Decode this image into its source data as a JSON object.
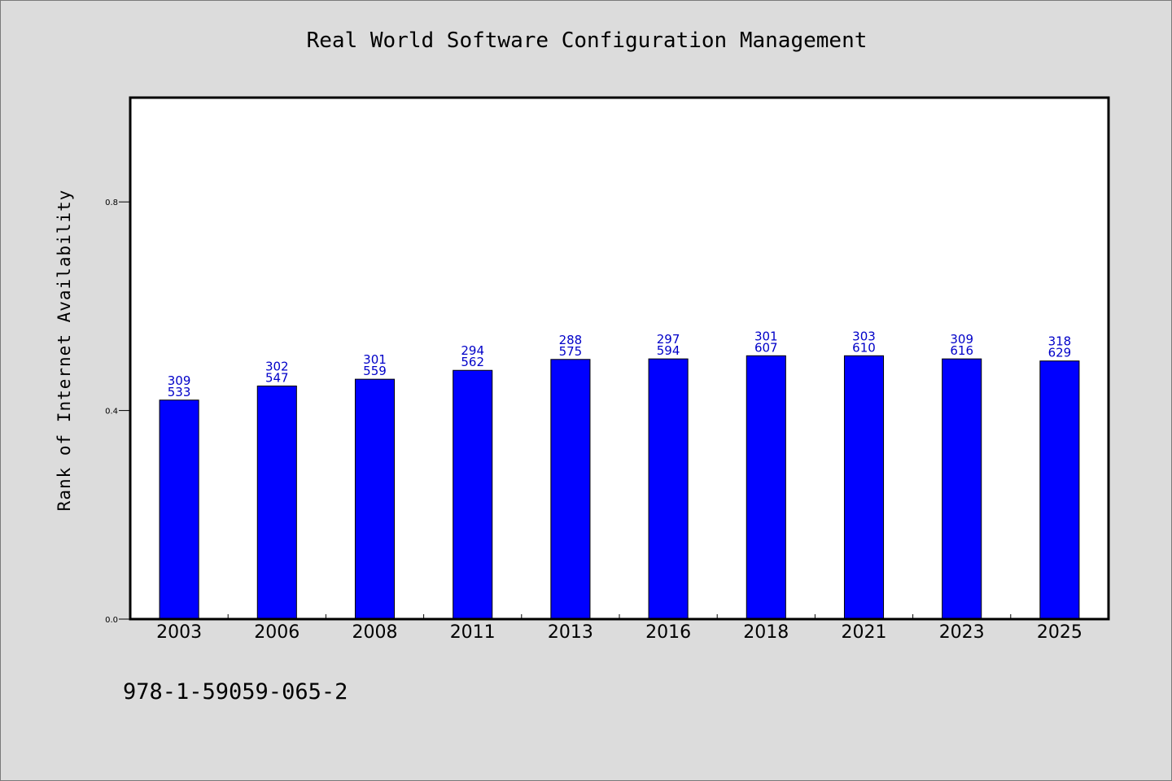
{
  "chart_data": {
    "type": "bar",
    "title": "Real World Software Configuration Management",
    "ylabel": "Rank of Internet Availability",
    "xlabel": "",
    "ylim": [
      0,
      1
    ],
    "yticks": [
      0.0,
      0.4,
      0.8
    ],
    "ytick_labels": [
      "0.0",
      "0.4",
      "0.8"
    ],
    "categories": [
      "2003",
      "2006",
      "2008",
      "2011",
      "2013",
      "2016",
      "2018",
      "2021",
      "2023",
      "2025"
    ],
    "values": [
      0.42,
      0.447,
      0.46,
      0.477,
      0.498,
      0.499,
      0.505,
      0.505,
      0.499,
      0.495
    ],
    "bar_labels_top": [
      "309",
      "302",
      "301",
      "294",
      "288",
      "297",
      "301",
      "303",
      "309",
      "318"
    ],
    "bar_labels_bottom": [
      "533",
      "547",
      "559",
      "562",
      "575",
      "594",
      "607",
      "610",
      "616",
      "629"
    ],
    "grid": false,
    "legend": "none"
  },
  "footer": {
    "isbn": "978-1-59059-065-2"
  },
  "colors": {
    "bar": "#0000ff",
    "bar_label": "#0000c8",
    "background": "#dcdcdc",
    "plot_background": "#ffffff",
    "axis": "#000000"
  }
}
